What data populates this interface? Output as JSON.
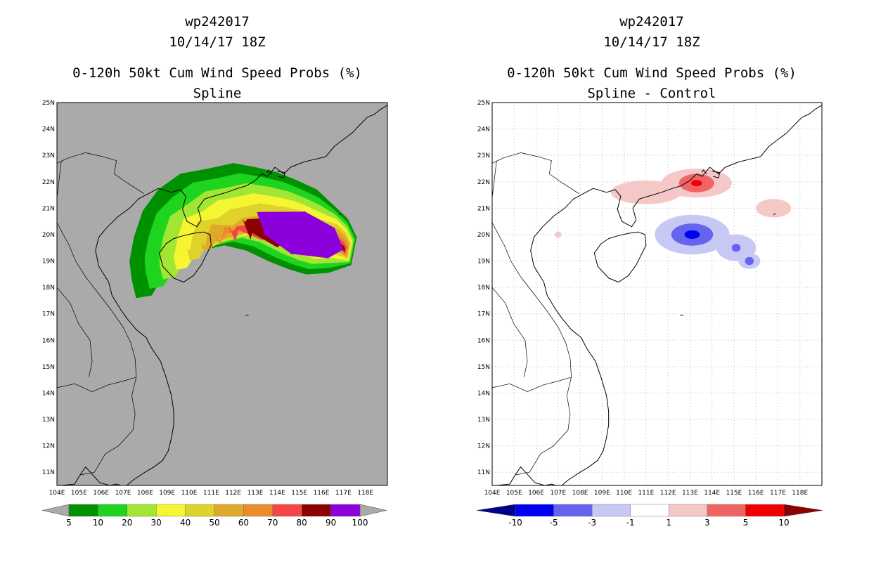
{
  "panels": [
    {
      "id": "spline",
      "storm_id": "wp242017",
      "datetime": "10/14/17 18Z",
      "product": "0-120h 50kt Cum Wind Speed Probs (%)",
      "subtitle": "Spline",
      "colors": {
        "background": "#aaaaaa",
        "land": "#aaaaaa"
      },
      "colorbar": {
        "labels": [
          "5",
          "10",
          "20",
          "30",
          "40",
          "50",
          "60",
          "70",
          "80",
          "90",
          "100"
        ],
        "colors": [
          "#009100",
          "#1fd41f",
          "#a0e632",
          "#f5f532",
          "#dfd22a",
          "#dfaa2a",
          "#eb8c2a",
          "#f54646",
          "#8c0000",
          "#8c00dc"
        ],
        "end_colors": [
          "#aaaaaa",
          "#aaaaaa"
        ]
      },
      "field": {
        "levels": [
          5,
          10,
          20,
          30,
          40,
          50,
          60,
          70,
          80,
          90
        ],
        "min_lon": 107.3,
        "max_lon": 117.6,
        "min_lat": 17.6,
        "max_lat": 22.7
      }
    },
    {
      "id": "diff",
      "storm_id": "wp242017",
      "datetime": "10/14/17 18Z",
      "product": "0-120h 50kt Cum Wind Speed Probs (%)",
      "subtitle": "Spline - Control",
      "colors": {
        "background": "#ffffff",
        "land": "#ffffff"
      },
      "colorbar": {
        "labels": [
          "-10",
          "-5",
          "-3",
          "-1",
          "1",
          "3",
          "5",
          "10"
        ],
        "colors": [
          "#0000f0",
          "#6464f0",
          "#c8c8f5",
          "#ffffff",
          "#f5c8c8",
          "#f06464",
          "#f00000"
        ],
        "end_colors": [
          "#00008c",
          "#8c0000"
        ]
      },
      "anomalies": [
        {
          "lon": 113.1,
          "lat": 20.0,
          "sign": "negative",
          "peak": -10
        },
        {
          "lon": 115.1,
          "lat": 19.5,
          "sign": "negative",
          "peak": -5
        },
        {
          "lon": 115.7,
          "lat": 19.0,
          "sign": "negative",
          "peak": -5
        },
        {
          "lon": 113.3,
          "lat": 21.95,
          "sign": "positive",
          "peak": 10
        },
        {
          "lon": 111.0,
          "lat": 21.6,
          "sign": "positive",
          "peak": 3
        },
        {
          "lon": 116.8,
          "lat": 21.0,
          "sign": "positive",
          "peak": 3
        },
        {
          "lon": 107.0,
          "lat": 20.0,
          "sign": "positive",
          "peak": 1
        }
      ]
    }
  ],
  "map": {
    "lon_min": 104,
    "lon_max": 119,
    "lat_min": 10.5,
    "lat_max": 25,
    "lon_ticks": [
      "104E",
      "105E",
      "106E",
      "107E",
      "108E",
      "109E",
      "110E",
      "111E",
      "112E",
      "113E",
      "114E",
      "115E",
      "116E",
      "117E",
      "118E"
    ],
    "lat_ticks": [
      "11N",
      "12N",
      "13N",
      "14N",
      "15N",
      "16N",
      "17N",
      "18N",
      "19N",
      "20N",
      "21N",
      "22N",
      "23N",
      "24N",
      "25N"
    ]
  },
  "geo": {
    "mainland_coast": [
      [
        104.2,
        10.5
      ],
      [
        104.8,
        10.55
      ],
      [
        105.05,
        10.9
      ],
      [
        105.3,
        11.2
      ],
      [
        105.95,
        10.6
      ],
      [
        106.4,
        10.5
      ],
      [
        106.7,
        10.55
      ],
      [
        107.1,
        10.45
      ],
      [
        107.45,
        10.7
      ],
      [
        108.0,
        11.0
      ],
      [
        108.4,
        11.2
      ],
      [
        108.8,
        11.45
      ],
      [
        109.05,
        11.8
      ],
      [
        109.2,
        12.3
      ],
      [
        109.3,
        12.8
      ],
      [
        109.3,
        13.3
      ],
      [
        109.2,
        13.9
      ],
      [
        108.95,
        14.6
      ],
      [
        108.7,
        15.2
      ],
      [
        108.3,
        15.7
      ],
      [
        108.05,
        16.1
      ],
      [
        107.6,
        16.4
      ],
      [
        107.2,
        16.8
      ],
      [
        106.9,
        17.15
      ],
      [
        106.5,
        17.7
      ],
      [
        106.35,
        18.2
      ],
      [
        105.9,
        18.8
      ],
      [
        105.75,
        19.4
      ],
      [
        105.9,
        19.9
      ],
      [
        106.3,
        20.3
      ],
      [
        106.8,
        20.7
      ],
      [
        107.3,
        21.0
      ],
      [
        107.7,
        21.35
      ],
      [
        108.15,
        21.55
      ],
      [
        108.6,
        21.75
      ],
      [
        109.2,
        21.6
      ],
      [
        109.6,
        21.7
      ],
      [
        109.85,
        21.45
      ],
      [
        109.7,
        20.95
      ],
      [
        109.9,
        20.5
      ],
      [
        110.35,
        20.3
      ],
      [
        110.55,
        20.55
      ],
      [
        110.4,
        21.0
      ],
      [
        110.7,
        21.35
      ],
      [
        111.1,
        21.45
      ],
      [
        111.7,
        21.6
      ],
      [
        112.2,
        21.75
      ],
      [
        112.6,
        21.85
      ],
      [
        113.0,
        22.05
      ],
      [
        113.3,
        22.3
      ],
      [
        113.55,
        22.2
      ],
      [
        113.9,
        22.55
      ],
      [
        114.3,
        22.3
      ],
      [
        114.6,
        22.55
      ],
      [
        115.2,
        22.75
      ],
      [
        115.7,
        22.85
      ],
      [
        116.2,
        22.95
      ],
      [
        116.6,
        23.35
      ],
      [
        117.0,
        23.6
      ],
      [
        117.4,
        23.85
      ],
      [
        117.8,
        24.2
      ],
      [
        118.1,
        24.45
      ],
      [
        118.4,
        24.55
      ],
      [
        118.7,
        24.75
      ],
      [
        119.0,
        24.9
      ]
    ],
    "hainan": [
      [
        108.65,
        19.3
      ],
      [
        108.8,
        18.8
      ],
      [
        109.3,
        18.35
      ],
      [
        109.75,
        18.2
      ],
      [
        110.2,
        18.45
      ],
      [
        110.55,
        18.85
      ],
      [
        111.0,
        19.6
      ],
      [
        110.95,
        20.0
      ],
      [
        110.65,
        20.1
      ],
      [
        110.2,
        20.05
      ],
      [
        109.7,
        19.95
      ],
      [
        109.3,
        19.85
      ],
      [
        108.95,
        19.65
      ],
      [
        108.65,
        19.3
      ]
    ],
    "phu_quoc": [
      [
        103.9,
        10.45
      ],
      [
        104.05,
        10.35
      ],
      [
        104.1,
        10.15
      ],
      [
        103.95,
        10.2
      ]
    ],
    "borders": [
      [
        [
          104.0,
          22.7
        ],
        [
          104.5,
          22.9
        ],
        [
          105.3,
          23.1
        ],
        [
          106.1,
          22.95
        ],
        [
          106.7,
          22.8
        ],
        [
          106.6,
          22.3
        ],
        [
          107.2,
          21.95
        ],
        [
          107.95,
          21.55
        ]
      ],
      [
        [
          104.2,
          22.8
        ],
        [
          104.0,
          21.4
        ],
        [
          103.9,
          20.6
        ],
        [
          104.55,
          19.6
        ],
        [
          104.85,
          19.0
        ],
        [
          105.3,
          18.4
        ],
        [
          105.95,
          17.7
        ],
        [
          106.5,
          17.1
        ],
        [
          107.0,
          16.5
        ],
        [
          107.35,
          15.9
        ],
        [
          107.55,
          15.3
        ],
        [
          107.6,
          14.6
        ]
      ],
      [
        [
          107.6,
          14.6
        ],
        [
          107.4,
          13.9
        ],
        [
          107.55,
          13.2
        ],
        [
          107.45,
          12.6
        ],
        [
          106.8,
          12.0
        ],
        [
          106.2,
          11.7
        ],
        [
          105.7,
          11.0
        ],
        [
          105.05,
          10.9
        ]
      ],
      [
        [
          104.0,
          14.2
        ],
        [
          104.8,
          14.35
        ],
        [
          105.6,
          14.05
        ],
        [
          106.3,
          14.3
        ],
        [
          107.0,
          14.45
        ],
        [
          107.6,
          14.6
        ]
      ],
      [
        [
          104.0,
          18.0
        ],
        [
          104.6,
          17.4
        ],
        [
          105.0,
          16.6
        ],
        [
          105.5,
          16.0
        ],
        [
          105.6,
          15.2
        ],
        [
          105.45,
          14.6
        ]
      ]
    ],
    "islands": [
      [
        [
          113.55,
          22.35
        ],
        [
          113.6,
          22.45
        ],
        [
          113.75,
          22.3
        ]
      ],
      [
        [
          114.0,
          22.4
        ],
        [
          114.35,
          22.35
        ],
        [
          114.3,
          22.15
        ],
        [
          114.05,
          22.2
        ]
      ],
      [
        [
          116.8,
          20.75
        ],
        [
          116.9,
          20.8
        ]
      ],
      [
        [
          112.55,
          16.95
        ],
        [
          112.7,
          16.95
        ]
      ]
    ]
  }
}
